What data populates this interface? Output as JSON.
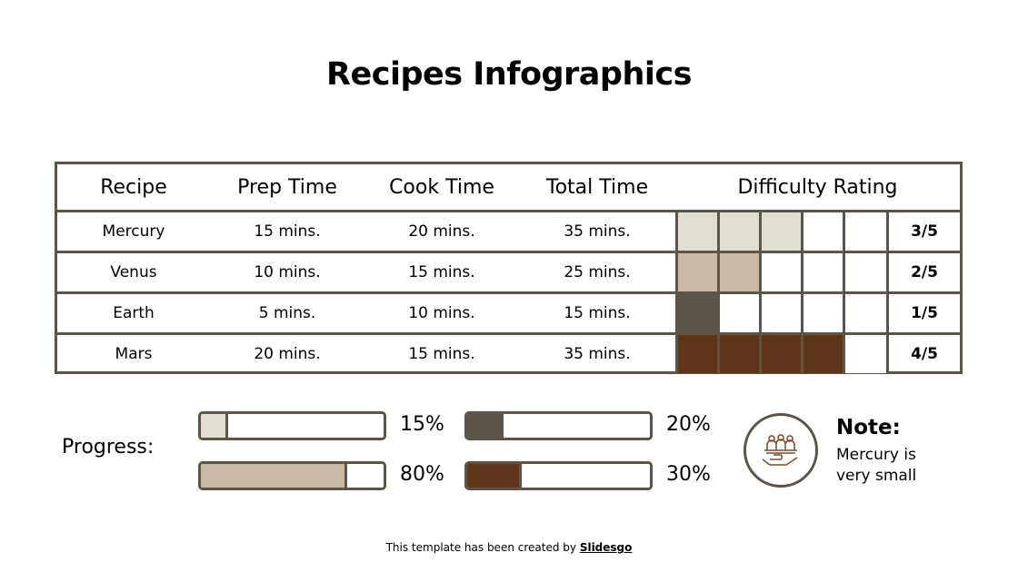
{
  "title": "Recipes Infographics",
  "table": {
    "headers": [
      "Recipe",
      "Prep Time",
      "Cook Time",
      "Total Time",
      "Difficulty Rating"
    ],
    "rows": [
      {
        "recipe": "Mercury",
        "prep": "15 mins.",
        "cook": "20 mins.",
        "total": "35 mins.",
        "rating": "3/5",
        "level": 3,
        "color": "#e2ddd2"
      },
      {
        "recipe": "Venus",
        "prep": "10 mins.",
        "cook": "15 mins.",
        "total": "25 mins.",
        "rating": "2/5",
        "level": 2,
        "color": "#c8b9a6"
      },
      {
        "recipe": "Earth",
        "prep": "5 mins.",
        "cook": "10 mins.",
        "total": "15 mins.",
        "rating": "1/5",
        "level": 1,
        "color": "#5a5548"
      },
      {
        "recipe": "Mars",
        "prep": "20 mins.",
        "cook": "15 mins.",
        "total": "35 mins.",
        "rating": "4/5",
        "level": 4,
        "color": "#5e3519"
      }
    ]
  },
  "progress": {
    "label": "Progress:",
    "bars": [
      {
        "value": 15,
        "label": "15%",
        "color": "#e2ddd2"
      },
      {
        "value": 80,
        "label": "80%",
        "color": "#c8b9a6"
      },
      {
        "value": 20,
        "label": "20%",
        "color": "#5a5548"
      },
      {
        "value": 30,
        "label": "30%",
        "color": "#5e3519"
      }
    ]
  },
  "note": {
    "title": "Note:",
    "text_line1": "Mercury is",
    "text_line2": "very small",
    "icon": "serving-hand-people-icon"
  },
  "footer": {
    "prefix": "This template has been created by ",
    "brand": "Slidesgo"
  }
}
